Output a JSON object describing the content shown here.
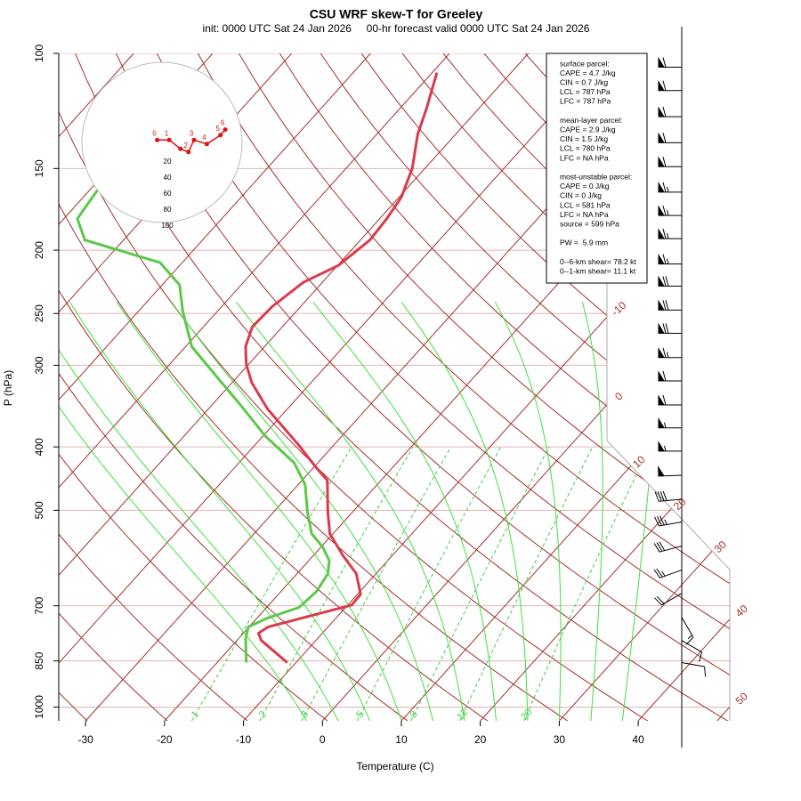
{
  "chart_data": {
    "type": "skewt",
    "title": "CSU WRF skew-T for Greeley",
    "subtitle": "init: 0000 UTC Sat 24 Jan 2026     00-hr forecast valid 0000 UTC Sat 24 Jan 2026",
    "x_label": "Temperature (C)",
    "y_label": "P (hPa)",
    "xlim": [
      -33.4,
      51.6
    ],
    "xticks": [
      -30,
      -20,
      -10,
      0,
      10,
      20,
      30,
      40
    ],
    "ylim": [
      100,
      1050
    ],
    "yticks": [
      100,
      150,
      200,
      250,
      300,
      400,
      500,
      700,
      850,
      1000
    ],
    "ylog": true,
    "isotherm_labels": [
      -10,
      0,
      10,
      20,
      30,
      40,
      50
    ],
    "mixing_ratios": [
      1,
      2,
      3,
      5,
      8,
      12,
      20
    ],
    "series": [
      {
        "color": "#dc3a4c",
        "pressure": [
          855,
          791,
          771,
          754,
          698,
          672,
          625,
          587,
          543,
          502,
          450,
          430,
          397,
          350,
          319,
          299,
          281,
          262,
          244,
          224,
          211,
          193,
          179,
          166,
          150,
          133,
          121,
          107
        ],
        "values": [
          -11.1,
          -16.9,
          -18.1,
          -17.6,
          -9.5,
          -9.6,
          -12.5,
          -16.2,
          -20.4,
          -23.2,
          -26.8,
          -29.7,
          -34.5,
          -42.5,
          -47.5,
          -50.3,
          -52.4,
          -53.8,
          -53.6,
          -52.4,
          -49.9,
          -48.8,
          -49.1,
          -49.7,
          -51.6,
          -54.8,
          -56.7,
          -59.4
        ]
      },
      {
        "color": "#5cc84a",
        "pressure": [
          855,
          786,
          754,
          731,
          704,
          665,
          625,
          597,
          569,
          543,
          502,
          457,
          423,
          385,
          345,
          309,
          281,
          248,
          226,
          209,
          193,
          179,
          162
        ],
        "values": [
          -16.3,
          -19.1,
          -20.1,
          -18.7,
          -15.9,
          -15.5,
          -16.1,
          -17.4,
          -19.8,
          -22.7,
          -25.8,
          -29.1,
          -33.0,
          -39.7,
          -46.4,
          -53.3,
          -59.2,
          -64.4,
          -67.8,
          -72.8,
          -84.9,
          -88.3,
          -89.0
        ]
      }
    ],
    "hodograph": {
      "color": "#e01010",
      "rings": [
        20,
        40,
        60,
        80,
        100
      ],
      "u": [
        -6,
        9,
        23,
        33,
        40,
        56,
        73,
        79
      ],
      "v": [
        3,
        3,
        -8,
        -12,
        3,
        -2,
        9,
        16
      ],
      "labels": [
        0,
        1,
        null,
        2,
        3,
        4,
        5,
        6
      ]
    },
    "wind_barbs": {
      "pressure": [
        105,
        114,
        125,
        137,
        149,
        163,
        177,
        192,
        210,
        227,
        247,
        268,
        292,
        317,
        345,
        374,
        406,
        442,
        481,
        521,
        567,
        617,
        670,
        729,
        791,
        855
      ],
      "speed": [
        60,
        60,
        60,
        60,
        60,
        65,
        65,
        65,
        65,
        70,
        70,
        70,
        65,
        60,
        60,
        55,
        55,
        50,
        40,
        35,
        30,
        25,
        20,
        15,
        10,
        10
      ],
      "direction": [
        270,
        270,
        270,
        270,
        270,
        270,
        270,
        270,
        270,
        270,
        270,
        270,
        270,
        270,
        270,
        270,
        270,
        268,
        265,
        260,
        255,
        250,
        240,
        150,
        120,
        100
      ]
    },
    "parcel_info": [
      [
        "surface parcel:",
        "CAPE = 4.7 J/kg",
        "CIN = 0.7 J/kg",
        "LCL = 787 hPa",
        "LFC = 787 hPa"
      ],
      [
        "mean-layer parcel:",
        "CAPE = 2.9 J/kg",
        "CIN = 1.5 J/kg",
        "LCL = 780 hPa",
        "LFC = NA hPa"
      ],
      [
        "most-unstable parcel:",
        "CAPE = 0 J/kg",
        "CIN = 0 J/kg",
        "LCL = 581 hPa",
        "LFC = NA hPa",
        "source = 599 hPa"
      ],
      [
        "PW =  5.9 mm"
      ],
      [
        "0--6-km shear= 78.2 kt",
        "0--1-km shear= 11.1 kt"
      ]
    ]
  }
}
